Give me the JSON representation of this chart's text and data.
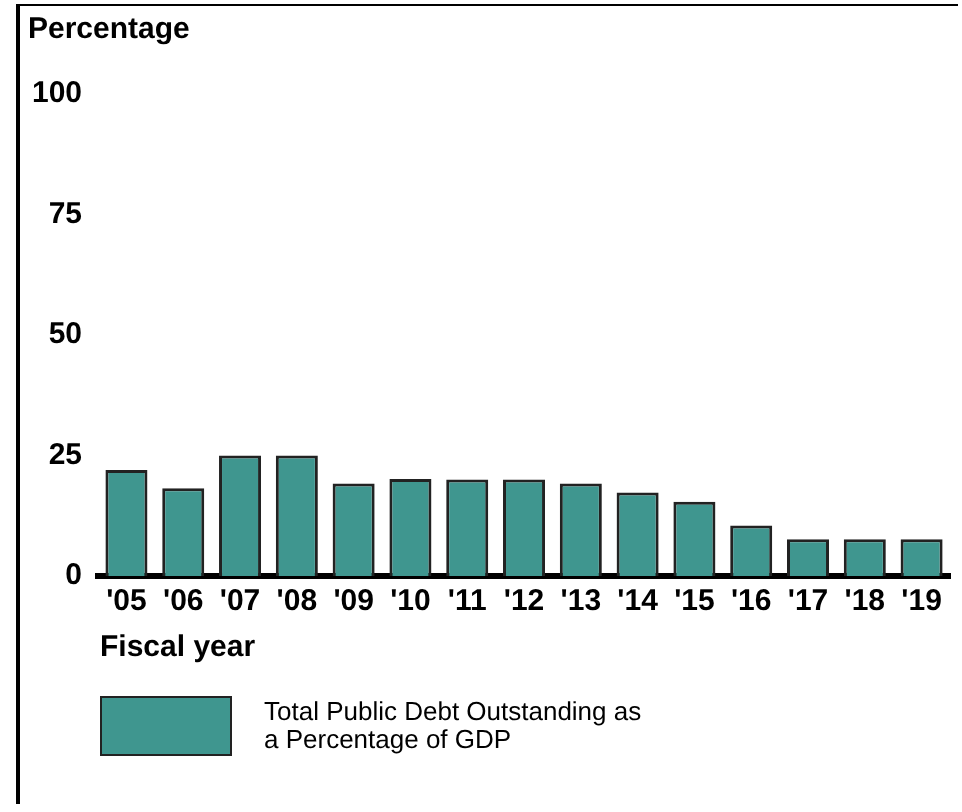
{
  "chart_data": {
    "type": "bar",
    "ylabel": "Percentage",
    "xlabel": "Fiscal year",
    "categories": [
      "'05",
      "'06",
      "'07",
      "'08",
      "'09",
      "'10",
      "'11",
      "'12",
      "'13",
      "'14",
      "'15",
      "'16",
      "'17",
      "'18",
      "'19"
    ],
    "series": [
      {
        "name": "Total Public Debt Outstanding as a Percentage of GDP",
        "color": "#3f968f",
        "values": [
          22,
          18.2,
          25,
          25,
          19.2,
          20.1,
          20,
          20,
          19.2,
          17.3,
          15.4,
          10.5,
          7.6,
          7.6,
          7.6
        ]
      }
    ],
    "ylim": [
      0,
      100
    ],
    "yticks": [
      0,
      25,
      50,
      75,
      100
    ],
    "grid": false,
    "legend": "bottom"
  }
}
